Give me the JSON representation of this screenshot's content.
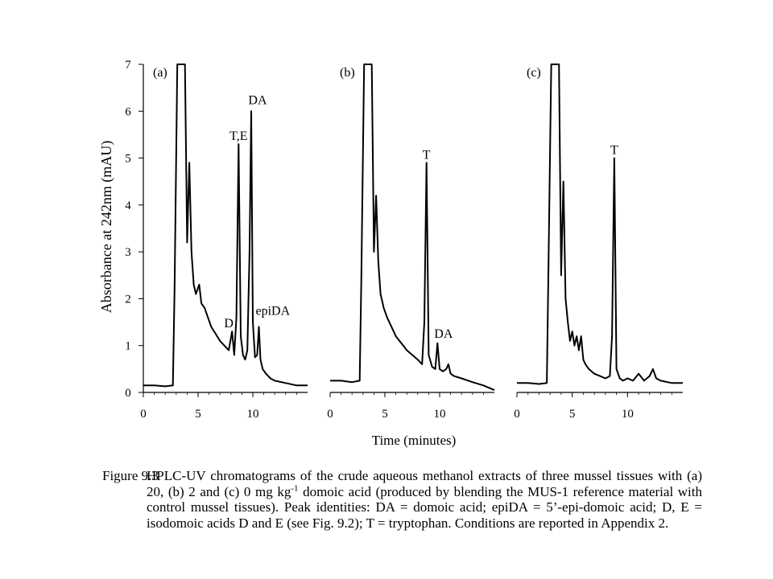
{
  "chart_data": [
    {
      "type": "line",
      "panel_label": "(a)",
      "xlabel": "Time (minutes)",
      "ylabel": "Absorbance at 242nm (mAU)",
      "xlim": [
        0,
        15
      ],
      "ylim": [
        0,
        7
      ],
      "xticks": [
        0,
        5,
        10
      ],
      "yticks": [
        0,
        1,
        2,
        3,
        4,
        5,
        6,
        7
      ],
      "series": [
        {
          "x": [
            0,
            1,
            2,
            2.7,
            2.85,
            3.1,
            3.8,
            4.0,
            4.2,
            4.4,
            4.6,
            4.8,
            5.1,
            5.3,
            5.6,
            5.9,
            6.2,
            6.6,
            7.0,
            7.4,
            7.8,
            8.1,
            8.3,
            8.5,
            8.7,
            8.9,
            9.1,
            9.3,
            9.5,
            9.7,
            9.85,
            10.0,
            10.2,
            10.4,
            10.55,
            10.7,
            10.9,
            11.2,
            11.6,
            12.0,
            13.0,
            14.0,
            15.0
          ],
          "y": [
            0.15,
            0.15,
            0.13,
            0.15,
            2.2,
            7,
            7,
            3.2,
            4.9,
            3.0,
            2.3,
            2.1,
            2.3,
            1.9,
            1.8,
            1.6,
            1.4,
            1.25,
            1.1,
            1.0,
            0.9,
            1.3,
            0.8,
            1.6,
            5.3,
            1.2,
            0.8,
            0.7,
            0.9,
            3.0,
            6.0,
            1.5,
            0.75,
            0.8,
            1.4,
            0.7,
            0.5,
            0.4,
            0.3,
            0.25,
            0.2,
            0.15,
            0.15
          ]
        }
      ],
      "annotations": [
        {
          "text": "T,E",
          "x": 8.7,
          "y": 5.3
        },
        {
          "text": "DA",
          "x": 9.85,
          "y": 6.0
        },
        {
          "text": "D",
          "x": 8.1,
          "y": 1.3
        },
        {
          "text": "epiDA",
          "x": 10.55,
          "y": 1.4
        }
      ]
    },
    {
      "type": "line",
      "panel_label": "(b)",
      "xlim": [
        0,
        15
      ],
      "ylim": [
        0,
        7
      ],
      "xticks": [
        0,
        5,
        10
      ],
      "series": [
        {
          "x": [
            0,
            1,
            2,
            2.7,
            2.85,
            3.1,
            3.8,
            4.0,
            4.2,
            4.4,
            4.6,
            4.9,
            5.2,
            5.6,
            6.0,
            6.5,
            7.0,
            7.5,
            8.0,
            8.4,
            8.6,
            8.8,
            9.0,
            9.3,
            9.6,
            9.8,
            10.0,
            10.3,
            10.6,
            10.8,
            11.0,
            11.3,
            12.0,
            13.0,
            14.0,
            15.0
          ],
          "y": [
            0.25,
            0.25,
            0.22,
            0.25,
            2.5,
            7,
            7,
            3.0,
            4.2,
            2.8,
            2.1,
            1.8,
            1.6,
            1.4,
            1.2,
            1.05,
            0.9,
            0.8,
            0.7,
            0.6,
            1.5,
            4.9,
            0.8,
            0.55,
            0.5,
            1.05,
            0.5,
            0.45,
            0.5,
            0.6,
            0.4,
            0.35,
            0.3,
            0.22,
            0.15,
            0.05
          ]
        }
      ],
      "annotations": [
        {
          "text": "T",
          "x": 8.8,
          "y": 4.9
        },
        {
          "text": "DA",
          "x": 9.8,
          "y": 1.05
        }
      ]
    },
    {
      "type": "line",
      "panel_label": "(c)",
      "xlim": [
        0,
        15
      ],
      "ylim": [
        0,
        7
      ],
      "xticks": [
        0,
        5,
        10
      ],
      "series": [
        {
          "x": [
            0,
            1,
            2,
            2.7,
            2.85,
            3.1,
            3.8,
            4.0,
            4.2,
            4.4,
            4.6,
            4.8,
            5.0,
            5.2,
            5.4,
            5.6,
            5.8,
            6.0,
            6.2,
            6.5,
            7.0,
            7.5,
            8.0,
            8.4,
            8.6,
            8.8,
            9.0,
            9.3,
            9.6,
            10.0,
            10.5,
            11.0,
            11.5,
            12.0,
            12.3,
            12.6,
            13.0,
            14.0,
            15.0
          ],
          "y": [
            0.2,
            0.2,
            0.18,
            0.2,
            2.6,
            7,
            7,
            2.5,
            4.5,
            2.0,
            1.5,
            1.1,
            1.3,
            1.0,
            1.2,
            0.9,
            1.2,
            0.7,
            0.6,
            0.5,
            0.4,
            0.35,
            0.3,
            0.35,
            1.2,
            5.0,
            0.5,
            0.3,
            0.25,
            0.3,
            0.25,
            0.4,
            0.25,
            0.35,
            0.5,
            0.3,
            0.25,
            0.2,
            0.2
          ]
        }
      ],
      "annotations": [
        {
          "text": "T",
          "x": 8.8,
          "y": 5.0
        }
      ]
    }
  ],
  "caption": {
    "label": "Figure 9.3",
    "text_before_sup": "HPLC-UV chromatograms of the crude aqueous methanol extracts of three mussel tissues with (a) 20, (b) 2 and (c) 0 mg kg",
    "sup": "-1",
    "text_after_sup": " domoic acid (produced by blending the MUS-1 reference material with control mussel tissues). Peak identities: DA = domoic acid; epiDA = 5’-epi-domoic acid; D, E = isodomoic acids D and E (see Fig. 9.2); T = tryptophan. Conditions are reported in Appendix 2."
  }
}
